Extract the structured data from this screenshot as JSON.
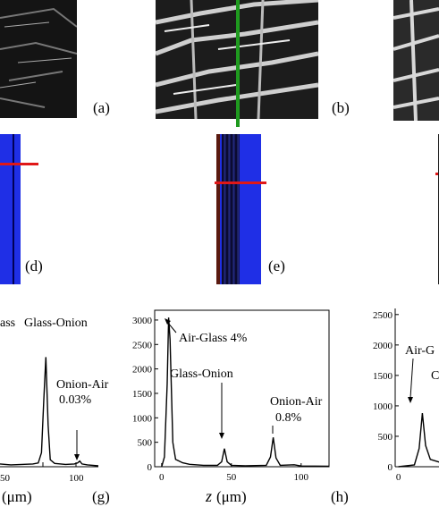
{
  "panel_labels": {
    "a": "(a)",
    "b": "(b)",
    "d": "(d)",
    "e": "(e)",
    "g": "(g)",
    "h": "(h)"
  },
  "colors": {
    "oct_background": "#1f2fe6",
    "scan_line_green": "#1f9a1f",
    "marker_line_red": "#e01818",
    "plot_line": "#000000"
  },
  "plots": {
    "g": {
      "annotations": [
        "ass",
        "Glass-Onion",
        "Onion-Air",
        "0.03%"
      ],
      "xticks": [
        "50",
        "100"
      ],
      "xlabel_unit": "(μm)"
    },
    "h": {
      "annotations": [
        "Air-Glass 4%",
        "Glass-Onion",
        "Onion-Air",
        "0.8%"
      ],
      "yticks": [
        "0",
        "500",
        "1000",
        "1500",
        "2000",
        "2500",
        "3000"
      ],
      "xticks": [
        "0",
        "50",
        "100"
      ],
      "xlabel_var": "z",
      "xlabel_unit": "(μm)"
    },
    "i": {
      "annotations": [
        "Air-G",
        "C"
      ],
      "yticks": [
        "0",
        "500",
        "1000",
        "1500",
        "2000",
        "2500"
      ],
      "xticks": [
        "0",
        "5"
      ]
    }
  },
  "chart_data": [
    {
      "type": "line",
      "panel": "g",
      "peaks": [
        {
          "x": 72,
          "y": 2350,
          "label": "Glass-Onion"
        },
        {
          "x": 103,
          "y": 120,
          "label": "Onion-Air 0.03%"
        }
      ],
      "xlim": [
        30,
        120
      ],
      "ylim": [
        0,
        3200
      ]
    },
    {
      "type": "line",
      "panel": "h",
      "x": [
        0,
        2,
        4,
        5,
        6,
        8,
        10,
        15,
        20,
        30,
        40,
        43,
        45,
        47,
        50,
        60,
        75,
        78,
        80,
        82,
        85,
        95,
        100,
        120
      ],
      "y": [
        0,
        200,
        1700,
        3050,
        2600,
        500,
        150,
        80,
        50,
        30,
        30,
        100,
        370,
        100,
        30,
        20,
        30,
        200,
        600,
        180,
        30,
        40,
        15,
        10
      ],
      "xlim": [
        -5,
        120
      ],
      "ylim": [
        0,
        3200
      ],
      "xlabel": "z (μm)",
      "annotations": [
        {
          "x": 5,
          "y": 3050,
          "text": "Air-Glass 4%"
        },
        {
          "x": 45,
          "y": 370,
          "text": "Glass-Onion"
        },
        {
          "x": 80,
          "y": 600,
          "text": "Onion-Air 0.8%"
        }
      ]
    },
    {
      "type": "line",
      "panel": "i",
      "x": [
        0,
        10,
        13,
        15,
        17,
        20,
        30,
        50
      ],
      "y": [
        0,
        30,
        300,
        880,
        350,
        120,
        40,
        20
      ],
      "xlim": [
        -2,
        50
      ],
      "ylim": [
        0,
        2600
      ]
    }
  ]
}
